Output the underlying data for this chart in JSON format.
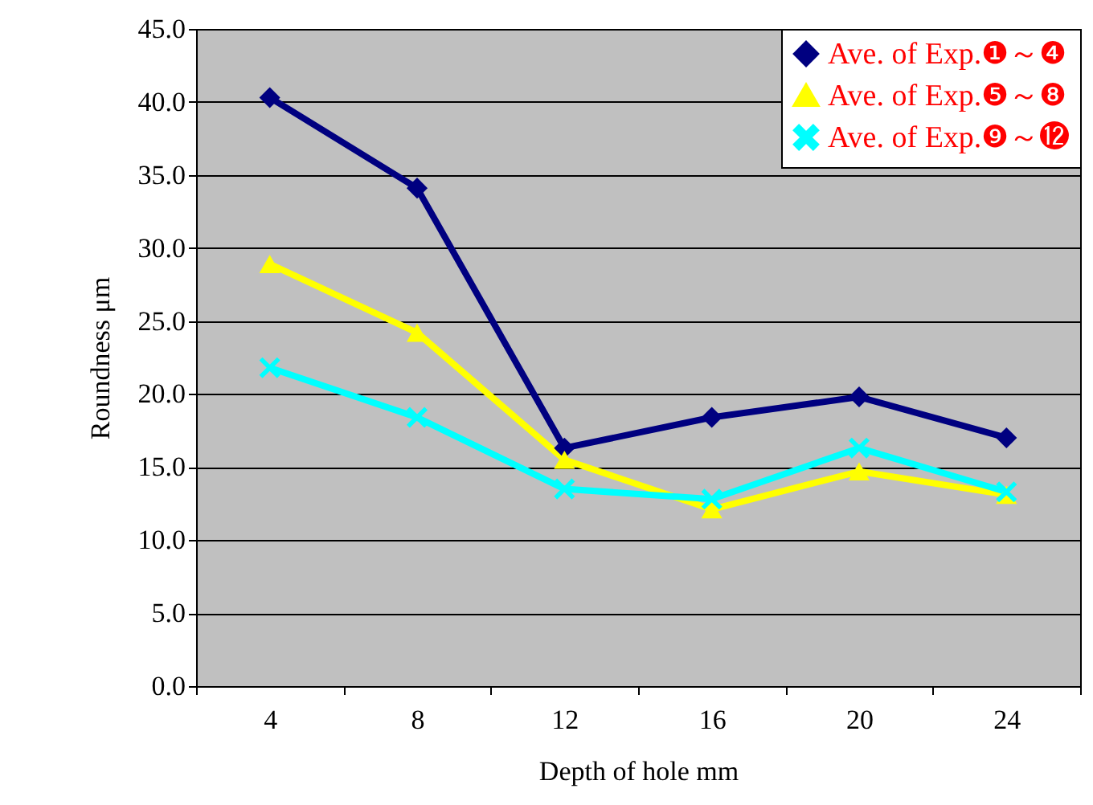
{
  "chart_data": {
    "type": "line",
    "xlabel": "Depth of hole  mm",
    "ylabel": "Roundness    μm",
    "categories": [
      "4",
      "8",
      "12",
      "16",
      "20",
      "24"
    ],
    "series": [
      {
        "name": "Ave. of Exp.❶～❹",
        "color": "#000080",
        "marker": "diamond",
        "values": [
          40.3,
          34.1,
          16.3,
          18.4,
          19.8,
          17.0
        ]
      },
      {
        "name": "Ave. of Exp.❺～❽",
        "color": "#ffff00",
        "marker": "triangle",
        "values": [
          28.9,
          24.2,
          15.5,
          12.1,
          14.7,
          13.1
        ]
      },
      {
        "name": "Ave. of Exp.❾～⓬",
        "color": "#00ffff",
        "marker": "cross",
        "values": [
          21.8,
          18.4,
          13.5,
          12.8,
          16.3,
          13.3
        ]
      }
    ],
    "ylim": [
      0,
      45
    ],
    "yticks": [
      {
        "value": 0,
        "label": "0.0"
      },
      {
        "value": 5,
        "label": "5.0"
      },
      {
        "value": 10,
        "label": "10.0"
      },
      {
        "value": 15,
        "label": "15.0"
      },
      {
        "value": 20,
        "label": "20.0"
      },
      {
        "value": 25,
        "label": "25.0"
      },
      {
        "value": 30,
        "label": "30.0"
      },
      {
        "value": 35,
        "label": "35.0"
      },
      {
        "value": 40,
        "label": "40.0"
      },
      {
        "value": 45,
        "label": "45.0"
      }
    ],
    "grid": "y",
    "legend": "top right"
  }
}
